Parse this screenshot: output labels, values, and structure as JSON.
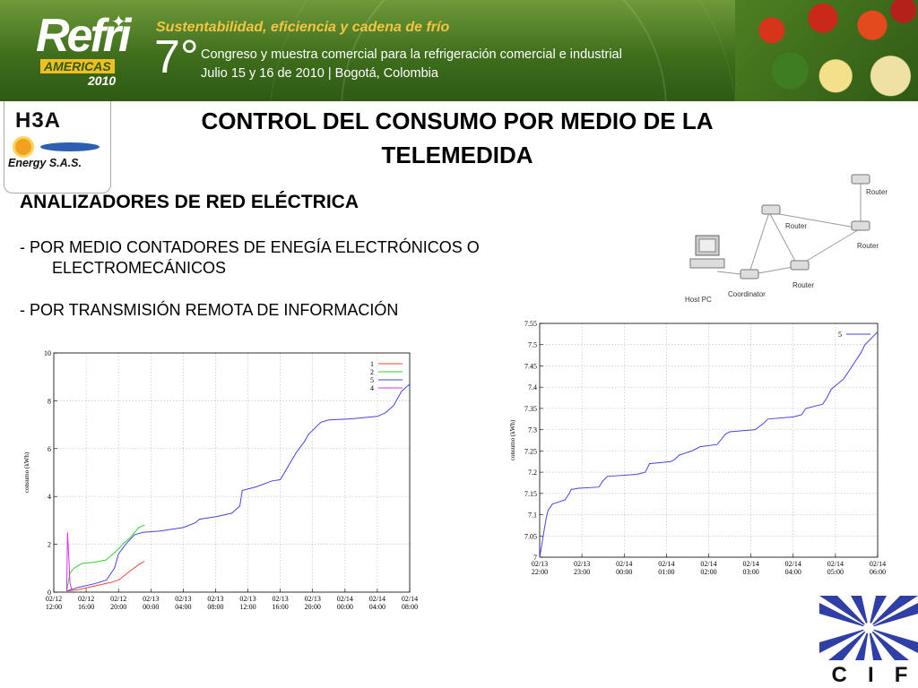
{
  "banner": {
    "logo_top": "Refri",
    "logo_mid": "AMERICAS",
    "logo_year": "2010",
    "tagline": "Sustentabilidad, eficiencia y cadena de frío",
    "edition": "7°",
    "line1": "Congreso y muestra comercial para la refrigeración comercial e industrial",
    "line2": "Julio 15 y 16 de 2010 | Bogotá, Colombia"
  },
  "company_logo": {
    "mark": "H3A",
    "name": "Energy S.A.S."
  },
  "slide": {
    "title": "CONTROL DEL CONSUMO POR MEDIO DE LA TELEMEDIDA",
    "subheading": "ANALIZADORES DE RED ELÉCTRICA",
    "bullet1_line1": "- POR MEDIO CONTADORES DE ENEGÍA ELECTRÓNICOS O",
    "bullet1_line2": "ELECTROMECÁNICOS",
    "bullet2": "- POR TRANSMISIÓN REMOTA DE INFORMACIÓN"
  },
  "network": {
    "labels": [
      "Router",
      "Router",
      "Router",
      "Router",
      "Host PC",
      "Coordinator"
    ]
  },
  "footer_logo": {
    "letters": [
      "C",
      "I",
      "F"
    ],
    "accent": "#2f3fa6"
  },
  "chart_data": [
    {
      "type": "line",
      "ylabel": "consumo (kWh)",
      "xlabel": "",
      "ylim": [
        0,
        10
      ],
      "xlim": [
        0,
        44
      ],
      "yticks": [
        0,
        2,
        4,
        6,
        8,
        10
      ],
      "xtick_positions": [
        0,
        4,
        8,
        12,
        16,
        20,
        24,
        28,
        32,
        36,
        40,
        44
      ],
      "xticks": [
        "02/12 12:00",
        "02/12 16:00",
        "02/12 20:00",
        "02/13 00:00",
        "02/13 04:00",
        "02/13 08:00",
        "02/13 12:00",
        "02/13 16:00",
        "02/13 20:00",
        "02/14 00:00",
        "02/14 04:00",
        "02/14 08:00"
      ],
      "grid": true,
      "legend_position": "top-right",
      "series": [
        {
          "name": "1",
          "color": "#e8443a",
          "x": [
            1.6,
            3,
            5,
            7,
            8,
            9.5,
            10.5,
            11,
            11.2
          ],
          "y": [
            0.05,
            0.1,
            0.25,
            0.4,
            0.5,
            0.9,
            1.15,
            1.25,
            1.28
          ]
        },
        {
          "name": "2",
          "color": "#33d133",
          "x": [
            1.6,
            2,
            2.5,
            3,
            3.5,
            5,
            6.5,
            7,
            8,
            8.5,
            9.5,
            10.5,
            11.2
          ],
          "y": [
            0.05,
            0.8,
            1.0,
            1.1,
            1.2,
            1.25,
            1.35,
            1.5,
            1.8,
            2.0,
            2.3,
            2.7,
            2.8
          ]
        },
        {
          "name": "5",
          "color": "#4444e6",
          "x": [
            1.6,
            3,
            5,
            6.5,
            7.5,
            8,
            9,
            10,
            11,
            13,
            14,
            15,
            16,
            17.5,
            18,
            20,
            22,
            23,
            23.3,
            25,
            27,
            28,
            30,
            31,
            31.5,
            33,
            34,
            37,
            40,
            41,
            42,
            43,
            44
          ],
          "y": [
            0.05,
            0.2,
            0.35,
            0.5,
            1.0,
            1.6,
            2.05,
            2.4,
            2.5,
            2.55,
            2.6,
            2.65,
            2.7,
            2.9,
            3.05,
            3.15,
            3.3,
            3.6,
            4.25,
            4.4,
            4.65,
            4.7,
            5.85,
            6.3,
            6.6,
            7.1,
            7.2,
            7.25,
            7.35,
            7.5,
            7.8,
            8.4,
            8.7
          ]
        },
        {
          "name": "4",
          "color": "#e030e0",
          "x": [
            1.6,
            1.7,
            1.9,
            2.0,
            2.2
          ],
          "y": [
            0.05,
            2.5,
            1.2,
            0.4,
            0.1
          ]
        }
      ]
    },
    {
      "type": "line",
      "ylabel": "consumo (kWh)",
      "xlabel": "",
      "ylim": [
        7,
        7.55
      ],
      "xlim": [
        0,
        8
      ],
      "yticks": [
        7,
        7.05,
        7.1,
        7.15,
        7.2,
        7.25,
        7.3,
        7.35,
        7.4,
        7.45,
        7.5,
        7.55
      ],
      "xtick_positions": [
        0,
        1,
        2,
        3,
        4,
        5,
        6,
        7,
        8
      ],
      "xticks": [
        "02/13 22:00",
        "02/13 23:00",
        "02/14 00:00",
        "02/14 01:00",
        "02/14 02:00",
        "02/14 03:00",
        "02/14 04:00",
        "02/14 05:00",
        "02/14 06:00"
      ],
      "grid": true,
      "legend_position": "top-right",
      "series": [
        {
          "name": "5",
          "color": "#4444e6",
          "x": [
            0,
            0.05,
            0.1,
            0.15,
            0.2,
            0.3,
            0.45,
            0.6,
            0.7,
            0.75,
            0.8,
            0.9,
            1.4,
            1.5,
            1.6,
            2.3,
            2.5,
            2.6,
            3.1,
            3.2,
            3.3,
            3.6,
            3.7,
            3.8,
            4.2,
            4.4,
            4.5,
            5.1,
            5.3,
            5.4,
            6.0,
            6.2,
            6.3,
            6.7,
            6.8,
            6.9,
            7.2,
            7.3,
            7.4,
            7.6,
            7.7,
            7.8,
            7.9,
            8.0
          ],
          "y": [
            7.0,
            7.03,
            7.06,
            7.09,
            7.11,
            7.125,
            7.13,
            7.135,
            7.15,
            7.16,
            7.16,
            7.162,
            7.165,
            7.18,
            7.19,
            7.195,
            7.2,
            7.22,
            7.225,
            7.23,
            7.24,
            7.25,
            7.255,
            7.26,
            7.265,
            7.29,
            7.295,
            7.3,
            7.315,
            7.325,
            7.33,
            7.335,
            7.35,
            7.36,
            7.375,
            7.395,
            7.42,
            7.435,
            7.45,
            7.48,
            7.5,
            7.51,
            7.52,
            7.53
          ]
        }
      ]
    }
  ]
}
